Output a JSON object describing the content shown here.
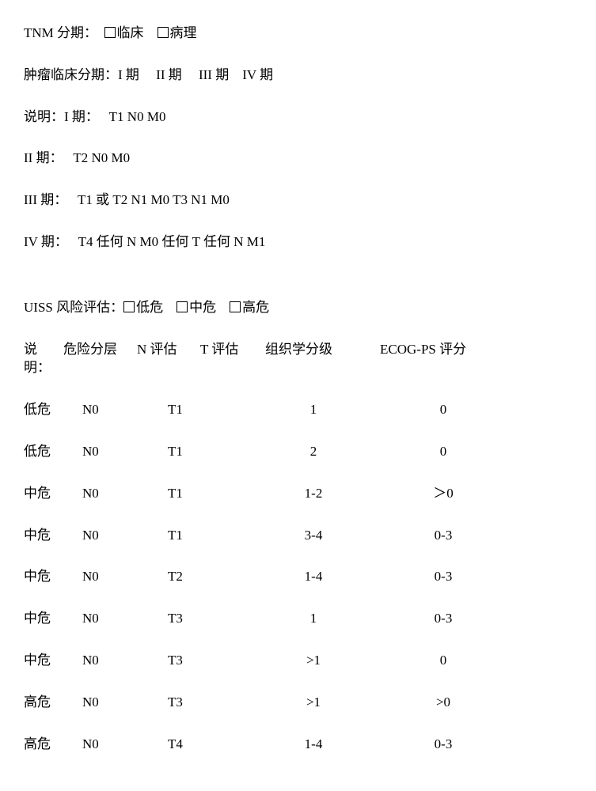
{
  "section1": {
    "tnm_label": "TNM 分期：",
    "clinical": "临床",
    "pathology": "病理",
    "clinical_stage_label": "肿瘤临床分期：",
    "stages": "I 期　 II 期　 III 期　IV 期",
    "explain_prefix": "说明：",
    "stage1_label": "I 期：",
    "stage1_val": "T1 N0 M0",
    "stage2_label": "II 期：",
    "stage2_val": "T2 N0 M0",
    "stage3_label": "III 期：",
    "stage3_val": "T1 或 T2 N1 M0 T3 N1 M0",
    "stage4_label": "IV 期：",
    "stage4_val": "T4 任何 N M0 任何 T 任何 N M1"
  },
  "section2": {
    "uiss_label": "UISS 风险评估：",
    "low_risk": "低危",
    "mid_risk": "中危",
    "high_risk": "高危",
    "explain_prefix": "说明：",
    "headers": {
      "risk": "危险分层",
      "n": "N 评估",
      "t": "T 评估",
      "grade": "组织学分级",
      "ecog": "ECOG-PS 评分"
    },
    "rows": [
      {
        "risk": "低危",
        "n": "N0",
        "t": "T1",
        "grade": "1",
        "ecog": "0"
      },
      {
        "risk": "低危",
        "n": "N0",
        "t": "T1",
        "grade": "2",
        "ecog": "0"
      },
      {
        "risk": "中危",
        "n": "N0",
        "t": "T1",
        "grade": "1-2",
        "ecog": "＞0"
      },
      {
        "risk": "中危",
        "n": "N0",
        "t": "T1",
        "grade": "3-4",
        "ecog": "0-3"
      },
      {
        "risk": "中危",
        "n": "N0",
        "t": "T2",
        "grade": "1-4",
        "ecog": "0-3"
      },
      {
        "risk": "中危",
        "n": "N0",
        "t": "T3",
        "grade": "1",
        "ecog": "0-3"
      },
      {
        "risk": "中危",
        "n": "N0",
        "t": "T3",
        "grade": ">1",
        "ecog": "0"
      },
      {
        "risk": "高危",
        "n": "N0",
        "t": "T3",
        "grade": ">1",
        "ecog": ">0"
      },
      {
        "risk": "高危",
        "n": "N0",
        "t": "T4",
        "grade": "1-4",
        "ecog": "0-3"
      }
    ]
  },
  "style": {
    "background_color": "#ffffff",
    "text_color": "#000000",
    "font_family": "SimSun",
    "font_size": 17,
    "line_spacing": 29
  }
}
